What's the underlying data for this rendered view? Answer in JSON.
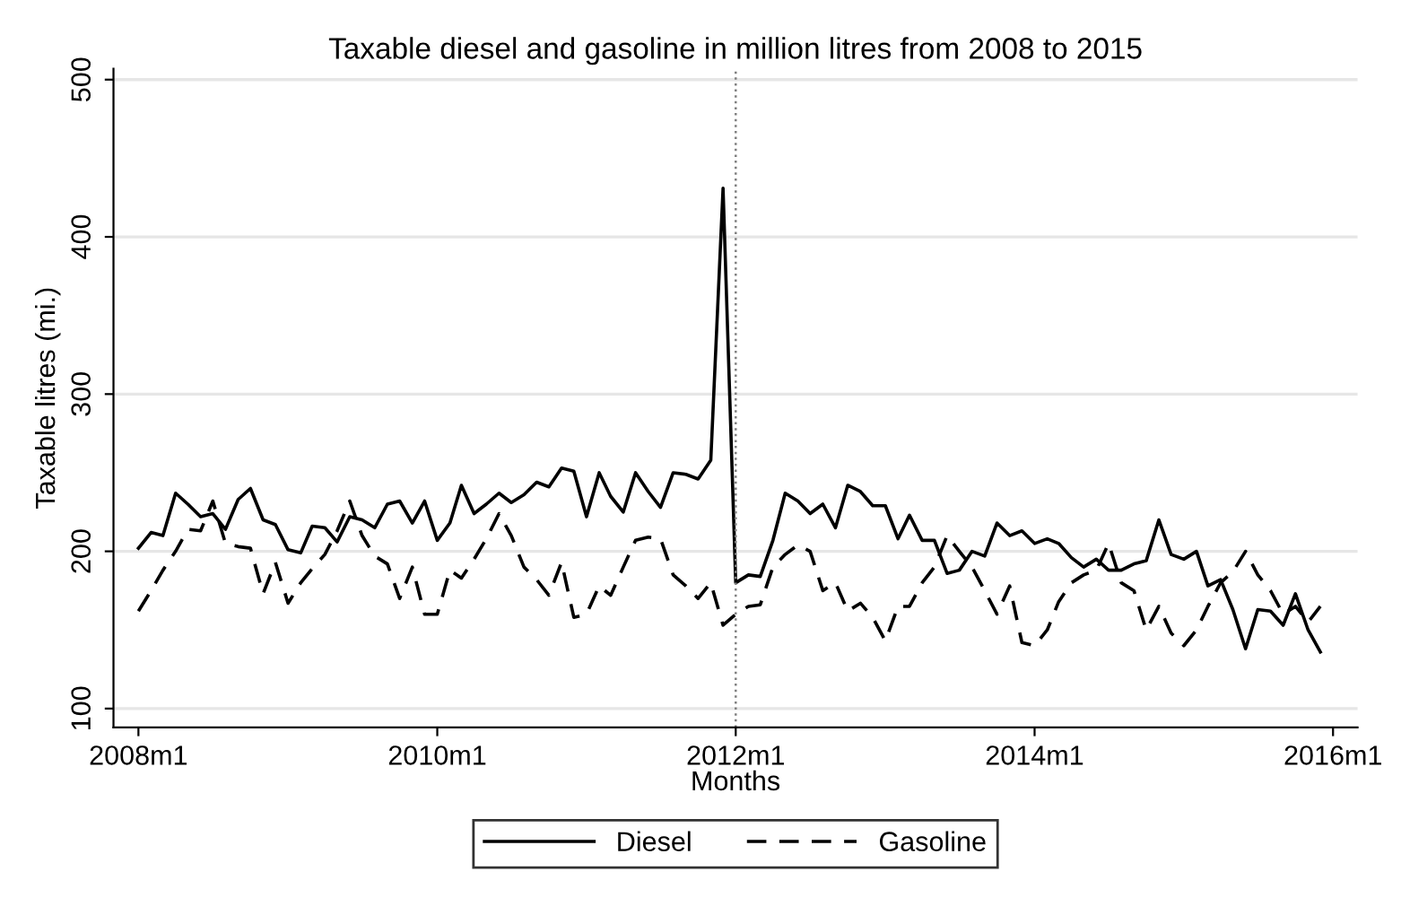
{
  "chart_data": {
    "type": "line",
    "title": "Taxable diesel and gasoline in million litres from 2008 to 2015",
    "xlabel": "Months",
    "ylabel": "Taxable litres (mi.)",
    "x": [
      "2008-01",
      "2008-02",
      "2008-03",
      "2008-04",
      "2008-05",
      "2008-06",
      "2008-07",
      "2008-08",
      "2008-09",
      "2008-10",
      "2008-11",
      "2008-12",
      "2009-01",
      "2009-02",
      "2009-03",
      "2009-04",
      "2009-05",
      "2009-06",
      "2009-07",
      "2009-08",
      "2009-09",
      "2009-10",
      "2009-11",
      "2009-12",
      "2010-01",
      "2010-02",
      "2010-03",
      "2010-04",
      "2010-05",
      "2010-06",
      "2010-07",
      "2010-08",
      "2010-09",
      "2010-10",
      "2010-11",
      "2010-12",
      "2011-01",
      "2011-02",
      "2011-03",
      "2011-04",
      "2011-05",
      "2011-06",
      "2011-07",
      "2011-08",
      "2011-09",
      "2011-10",
      "2011-11",
      "2011-12",
      "2012-01",
      "2012-02",
      "2012-03",
      "2012-04",
      "2012-05",
      "2012-06",
      "2012-07",
      "2012-08",
      "2012-09",
      "2012-10",
      "2012-11",
      "2012-12",
      "2013-01",
      "2013-02",
      "2013-03",
      "2013-04",
      "2013-05",
      "2013-06",
      "2013-07",
      "2013-08",
      "2013-09",
      "2013-10",
      "2013-11",
      "2013-12",
      "2014-01",
      "2014-02",
      "2014-03",
      "2014-04",
      "2014-05",
      "2014-06",
      "2014-07",
      "2014-08",
      "2014-09",
      "2014-10",
      "2014-11",
      "2014-12",
      "2015-01",
      "2015-02",
      "2015-03",
      "2015-04",
      "2015-05",
      "2015-06",
      "2015-07",
      "2015-08",
      "2015-09",
      "2015-10",
      "2015-11",
      "2015-12"
    ],
    "series": [
      {
        "name": "Diesel",
        "color": "#000000",
        "line_style": "solid",
        "values": [
          202,
          212,
          210,
          237,
          230,
          222,
          224,
          214,
          233,
          240,
          220,
          217,
          201,
          199,
          216,
          215,
          206,
          222,
          220,
          215,
          230,
          232,
          218,
          232,
          207,
          218,
          242,
          224,
          230,
          237,
          231,
          236,
          244,
          241,
          253,
          251,
          222,
          250,
          235,
          225,
          250,
          238,
          228,
          250,
          249,
          246,
          258,
          431,
          180,
          185,
          184,
          207,
          237,
          232,
          224,
          230,
          215,
          242,
          238,
          229,
          229,
          208,
          223,
          207,
          207,
          186,
          188,
          200,
          197,
          218,
          210,
          213,
          205,
          208,
          205,
          196,
          190,
          195,
          188,
          188,
          192,
          194,
          220,
          198,
          195,
          200,
          178,
          182,
          163,
          138,
          163,
          162,
          153,
          173,
          150,
          136
        ]
      },
      {
        "name": "Gasoline",
        "color": "#000000",
        "line_style": "dashed",
        "values": [
          162,
          175,
          188,
          200,
          214,
          213,
          232,
          205,
          203,
          202,
          173,
          193,
          167,
          180,
          189,
          198,
          213,
          232,
          210,
          197,
          192,
          170,
          190,
          160,
          160,
          188,
          183,
          195,
          208,
          224,
          210,
          190,
          182,
          172,
          193,
          158,
          160,
          178,
          172,
          190,
          207,
          209,
          208,
          185,
          178,
          170,
          180,
          153,
          160,
          165,
          166,
          190,
          198,
          204,
          200,
          175,
          180,
          162,
          167,
          158,
          143,
          165,
          165,
          180,
          190,
          210,
          200,
          190,
          175,
          160,
          178,
          142,
          140,
          150,
          168,
          180,
          185,
          188,
          205,
          180,
          175,
          150,
          165,
          148,
          140,
          150,
          165,
          180,
          187,
          200,
          185,
          175,
          160,
          165,
          155,
          165
        ]
      }
    ],
    "xlim": [
      "2007-11",
      "2016-03"
    ],
    "xticks": [
      {
        "value": "2008-01",
        "label": "2008m1"
      },
      {
        "value": "2010-01",
        "label": "2010m1"
      },
      {
        "value": "2012-01",
        "label": "2012m1"
      },
      {
        "value": "2014-01",
        "label": "2014m1"
      },
      {
        "value": "2016-01",
        "label": "2016m1"
      }
    ],
    "ylim": [
      88,
      507
    ],
    "yticks": [
      100,
      200,
      300,
      400,
      500
    ],
    "ref_lines": [
      {
        "axis": "x",
        "value": "2012-01",
        "color": "#808080",
        "line_style": "dotted"
      }
    ],
    "grid": "y",
    "legend": "bottom"
  }
}
